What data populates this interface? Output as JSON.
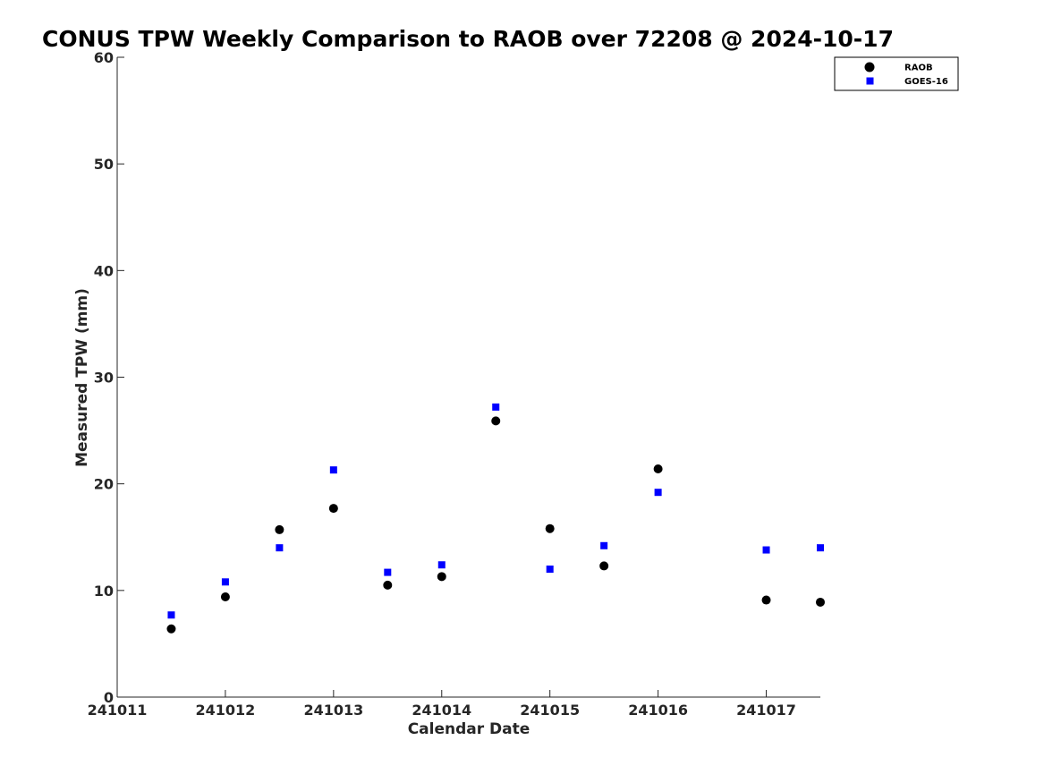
{
  "chart_data": {
    "type": "scatter",
    "title": "CONUS TPW Weekly Comparison to RAOB over 72208 @ 2024-10-17",
    "xlabel": "Calendar Date",
    "ylabel": "Measured TPW (mm)",
    "xlim": [
      241011,
      241017.5
    ],
    "ylim": [
      0,
      60
    ],
    "x_ticks": [
      241011,
      241012,
      241013,
      241014,
      241015,
      241016,
      241017
    ],
    "x_tick_labels": [
      "241011",
      "241012",
      "241013",
      "241014",
      "241015",
      "241016",
      "241017"
    ],
    "y_ticks": [
      0,
      10,
      20,
      30,
      40,
      50,
      60
    ],
    "y_tick_labels": [
      "0",
      "10",
      "20",
      "30",
      "40",
      "50",
      "60"
    ],
    "grid": false,
    "legend_position": "top-right",
    "series": [
      {
        "name": "RAOB",
        "marker": "circle",
        "color": "#000000",
        "x": [
          241011.5,
          241012,
          241012.5,
          241013,
          241013.5,
          241014,
          241014.5,
          241015,
          241015.5,
          241016,
          241017,
          241017.5
        ],
        "y": [
          6.4,
          9.4,
          15.7,
          17.7,
          10.5,
          11.3,
          25.9,
          15.8,
          12.3,
          21.4,
          9.1,
          8.9
        ]
      },
      {
        "name": "GOES-16",
        "marker": "square",
        "color": "#0000ff",
        "x": [
          241011.5,
          241012,
          241012.5,
          241013,
          241013.5,
          241014,
          241014.5,
          241015,
          241015.5,
          241016,
          241017,
          241017.5
        ],
        "y": [
          7.7,
          10.8,
          14.0,
          21.3,
          11.7,
          12.4,
          27.2,
          12.0,
          14.2,
          19.2,
          13.8,
          14.0
        ]
      }
    ]
  }
}
